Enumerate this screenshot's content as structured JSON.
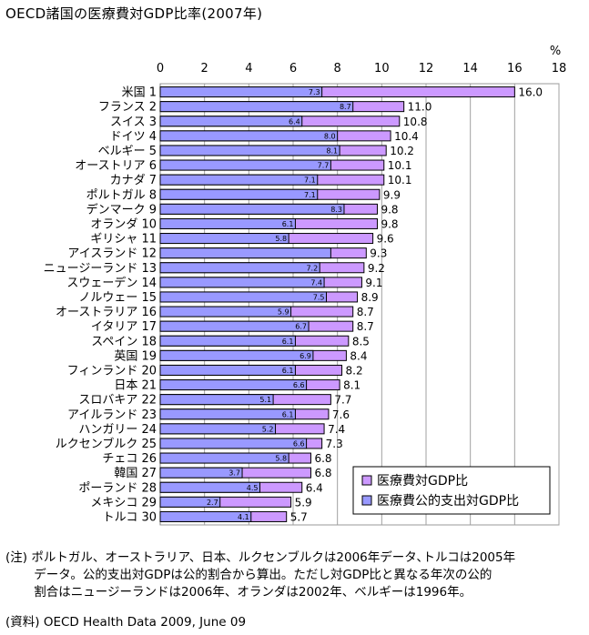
{
  "title": "OECD諸国の医療費対GDP比率(2007年)",
  "chart_data": {
    "type": "bar",
    "orientation": "horizontal",
    "unit": "%",
    "xlim": [
      0,
      18
    ],
    "xticks": [
      "0",
      "2",
      "4",
      "6",
      "8",
      "10",
      "12",
      "14",
      "16",
      "18"
    ],
    "grid": true,
    "legend_position": "bottom-right",
    "categories": [
      "米国 1",
      "フランス 2",
      "スイス 3",
      "ドイツ 4",
      "ベルギー 5",
      "オーストリア 6",
      "カナダ 7",
      "ポルトガル 8",
      "デンマーク 9",
      "オランダ 10",
      "ギリシャ 11",
      "アイスランド 12",
      "ニュージーランド 13",
      "スウェーデン 14",
      "ノルウェー 15",
      "オーストラリア 16",
      "イタリア 17",
      "スペイン 18",
      "英国 19",
      "フィンランド 20",
      "日本 21",
      "スロバキア 22",
      "アイルランド 23",
      "ハンガリー 24",
      "ルクセンブルク 25",
      "チェコ 26",
      "韓国 27",
      "ポーランド 28",
      "メキシコ 29",
      "トルコ 30"
    ],
    "series": [
      {
        "name": "医療費対GDP比",
        "color": "#cc99ff",
        "values": [
          16.0,
          11.0,
          10.8,
          10.4,
          10.2,
          10.1,
          10.1,
          9.9,
          9.8,
          9.8,
          9.6,
          9.3,
          9.2,
          9.1,
          8.9,
          8.7,
          8.7,
          8.5,
          8.4,
          8.2,
          8.1,
          7.7,
          7.6,
          7.4,
          7.3,
          6.8,
          6.8,
          6.4,
          5.9,
          5.7
        ],
        "labels": [
          "16.0",
          "11.0",
          "10.8",
          "10.4",
          "10.2",
          "10.1",
          "10.1",
          "9.9",
          "9.8",
          "9.8",
          "9.6",
          "9.3",
          "9.2",
          "9.1",
          "8.9",
          "8.7",
          "8.7",
          "8.5",
          "8.4",
          "8.2",
          "8.1",
          "7.7",
          "7.6",
          "7.4",
          "7.3",
          "6.8",
          "6.8",
          "6.4",
          "5.9",
          "5.7"
        ]
      },
      {
        "name": "医療費公的支出対GDP比",
        "color": "#9999ff",
        "values": [
          7.3,
          8.7,
          6.4,
          8.0,
          8.1,
          7.7,
          7.1,
          7.1,
          8.3,
          6.1,
          5.8,
          7.7,
          7.2,
          7.4,
          7.5,
          5.9,
          6.7,
          6.1,
          6.9,
          6.1,
          6.6,
          5.1,
          6.1,
          5.2,
          6.6,
          5.8,
          3.7,
          4.5,
          2.7,
          4.1
        ],
        "labels": [
          "7.3",
          "8.7",
          "6.4",
          "8.0",
          "8.1",
          "7.7",
          "7.1",
          "7.1",
          "8.3",
          "6.1",
          "5.8",
          "",
          "7.2",
          "7.4",
          "7.5",
          "5.9",
          "6.7",
          "6.1",
          "6.9",
          "6.1",
          "6.6",
          "5.1",
          "6.1",
          "5.2",
          "6.6",
          "5.8",
          "3.7",
          "4.5",
          "2.7",
          "4.1"
        ]
      }
    ]
  },
  "notes": {
    "lines": [
      "(注) ポルトガル、オーストラリア、日本、ルクセンブルクは2006年データ､トルコは2005年",
      "　　 データ。公的支出対GDPは公的割合から算出。ただし対GDP比と異なる年次の公的",
      "　　 割合はニュージーランドは2006年、オランダは2002年、ベルギーは1996年。"
    ],
    "source": "(資料) OECD Health Data 2009, June 09"
  }
}
